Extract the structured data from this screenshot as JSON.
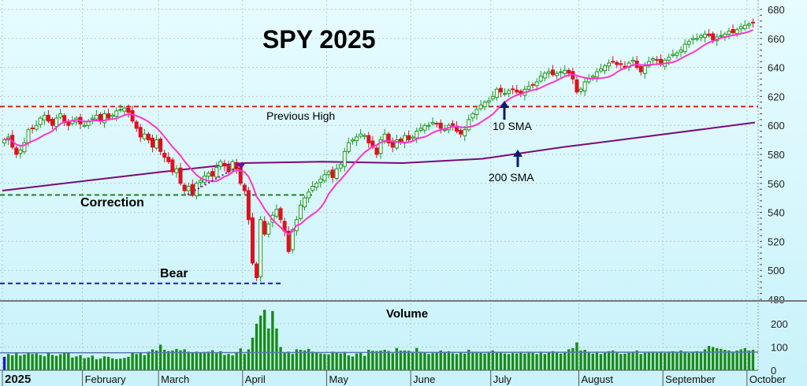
{
  "chart_data": {
    "type": "candlestick",
    "title": "SPY 2025",
    "ylim": [
      480,
      680
    ],
    "yticks": [
      680,
      660,
      640,
      620,
      600,
      580,
      560,
      540,
      520,
      500,
      480
    ],
    "volume_label": "Volume",
    "volume_ylim": [
      0,
      260
    ],
    "volume_ticks": [
      200,
      100,
      0
    ],
    "months": [
      {
        "label": "2025",
        "days": 20
      },
      {
        "label": "February",
        "days": 19
      },
      {
        "label": "March",
        "days": 21
      },
      {
        "label": "April",
        "days": 21
      },
      {
        "label": "May",
        "days": 21
      },
      {
        "label": "June",
        "days": 20
      },
      {
        "label": "July",
        "days": 22
      },
      {
        "label": "August",
        "days": 21
      },
      {
        "label": "September",
        "days": 21
      },
      {
        "label": "October",
        "days": 2
      }
    ],
    "closes": [
      590,
      592,
      585,
      580,
      583,
      588,
      597,
      598,
      600,
      605,
      607,
      603,
      600,
      605,
      608,
      602,
      600,
      603,
      605,
      601,
      600,
      603,
      605,
      607,
      603,
      608,
      605,
      607,
      610,
      611,
      612,
      609,
      603,
      598,
      592,
      594,
      590,
      585,
      590,
      582,
      578,
      575,
      568,
      570,
      560,
      555,
      558,
      552,
      560,
      562,
      565,
      567,
      565,
      571,
      575,
      572,
      568,
      575,
      570,
      560,
      555,
      535,
      505,
      495,
      535,
      525,
      532,
      538,
      542,
      535,
      527,
      513,
      528,
      535,
      545,
      550,
      554,
      558,
      560,
      563,
      566,
      568,
      564,
      570,
      573,
      582,
      588,
      590,
      592,
      594,
      593,
      588,
      585,
      580,
      590,
      594,
      588,
      585,
      590,
      589,
      593,
      590,
      592,
      596,
      598,
      600,
      600,
      602,
      601,
      598,
      597,
      600,
      600,
      596,
      594,
      597,
      604,
      608,
      611,
      614,
      616,
      617,
      620,
      625,
      623,
      622,
      624,
      625,
      623,
      622,
      625,
      627,
      628,
      630,
      634,
      636,
      637,
      635,
      636,
      637,
      638,
      636,
      632,
      623,
      625,
      630,
      632,
      634,
      637,
      639,
      641,
      643,
      644,
      642,
      642,
      640,
      643,
      645,
      640,
      637,
      641,
      644,
      646,
      645,
      642,
      645,
      647,
      649,
      650,
      652,
      656,
      658,
      660,
      660,
      662,
      663,
      662,
      659,
      661,
      662,
      663,
      665,
      664,
      666,
      668,
      669,
      670,
      671
    ],
    "volumes_millions": [
      58,
      70,
      64,
      77,
      63,
      68,
      73,
      70,
      72,
      66,
      60,
      77,
      66,
      62,
      69,
      78,
      78,
      55,
      60,
      65,
      52,
      55,
      63,
      47,
      50,
      60,
      58,
      51,
      48,
      50,
      53,
      58,
      78,
      70,
      73,
      65,
      80,
      90,
      85,
      110,
      88,
      83,
      85,
      92,
      86,
      90,
      80,
      76,
      80,
      75,
      79,
      80,
      86,
      73,
      82,
      66,
      70,
      64,
      78,
      94,
      70,
      90,
      140,
      200,
      235,
      260,
      180,
      255,
      180,
      100,
      75,
      80,
      70,
      90,
      88,
      85,
      92,
      80,
      77,
      72,
      70,
      68,
      80,
      75,
      72,
      79,
      64,
      59,
      72,
      76,
      62,
      88,
      84,
      83,
      85,
      88,
      83,
      73,
      96,
      85,
      85,
      84,
      80,
      96,
      80,
      75,
      70,
      74,
      78,
      85,
      80,
      82,
      73,
      70,
      79,
      72,
      88,
      80,
      80,
      75,
      72,
      80,
      85,
      75,
      78,
      72,
      70,
      74,
      73,
      80,
      72,
      80,
      75,
      70,
      80,
      70,
      78,
      82,
      75,
      72,
      80,
      90,
      95,
      120,
      85,
      88,
      78,
      72,
      80,
      70,
      75,
      82,
      85,
      77,
      70,
      72,
      75,
      80,
      85,
      70,
      75,
      78,
      80,
      76,
      80,
      75,
      80,
      82,
      78,
      85,
      80,
      75,
      78,
      82,
      80,
      90,
      105,
      100,
      95,
      92,
      88,
      85,
      80,
      85,
      90,
      95,
      85,
      88
    ],
    "sma200_anchors": [
      [
        0,
        555
      ],
      [
        40,
        568
      ],
      [
        60,
        574
      ],
      [
        80,
        575
      ],
      [
        100,
        574
      ],
      [
        120,
        577
      ],
      [
        140,
        585
      ],
      [
        160,
        592
      ],
      [
        188,
        602
      ]
    ],
    "levels": [
      {
        "label": "Previous High",
        "value": 613,
        "color": "#e02020"
      },
      {
        "label": "Correction",
        "value": 552,
        "color": "#1a8a1a"
      },
      {
        "label": "Bear",
        "value": 491,
        "color": "#1a1acc"
      }
    ],
    "annotations": {
      "sma10": "10 SMA",
      "sma200": "200 SMA"
    },
    "colors": {
      "up": "#1a9a1a",
      "down": "#e01020",
      "sma10": "#ff33cc",
      "sma200": "#7a0a7a",
      "volume": "#1a8a1a",
      "arrow": "#0a1a6a"
    }
  }
}
